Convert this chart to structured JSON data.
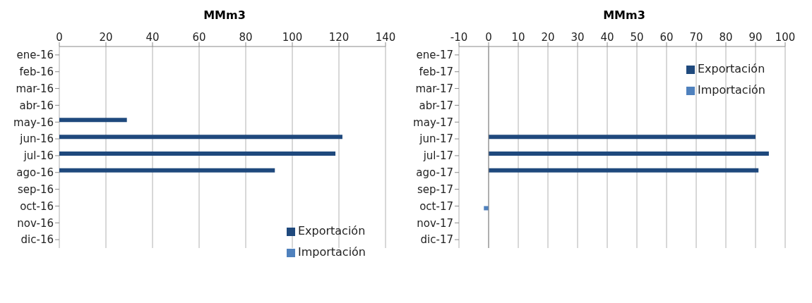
{
  "chart_data": [
    {
      "type": "bar",
      "orientation": "horizontal",
      "xlabel": "MMm3",
      "categories": [
        "ene-16",
        "feb-16",
        "mar-16",
        "abr-16",
        "may-16",
        "jun-16",
        "jul-16",
        "ago-16",
        "sep-16",
        "oct-16",
        "nov-16",
        "dic-16"
      ],
      "series": [
        {
          "name": "Exportación",
          "color": "#1f497d",
          "values": [
            null,
            null,
            null,
            null,
            29,
            121.5,
            118.5,
            92.5,
            null,
            null,
            null,
            null
          ]
        },
        {
          "name": "Importación",
          "color": "#4f81bd",
          "values": [
            null,
            null,
            null,
            null,
            null,
            null,
            null,
            null,
            null,
            null,
            null,
            null
          ]
        }
      ],
      "xlim": [
        0,
        140
      ],
      "xticks": [
        0,
        20,
        40,
        60,
        80,
        100,
        120,
        140
      ],
      "grid": "x",
      "legend": "bottom right"
    },
    {
      "type": "bar",
      "orientation": "horizontal",
      "xlabel": "MMm3",
      "categories": [
        "ene-17",
        "feb-17",
        "mar-17",
        "abr-17",
        "may-17",
        "jun-17",
        "jul-17",
        "ago-17",
        "sep-17",
        "oct-17",
        "nov-17",
        "dic-17"
      ],
      "series": [
        {
          "name": "Exportación",
          "color": "#1f497d",
          "values": [
            null,
            null,
            null,
            null,
            null,
            90,
            94.5,
            91,
            null,
            null,
            null,
            null
          ]
        },
        {
          "name": "Importación",
          "color": "#4f81bd",
          "values": [
            null,
            null,
            null,
            null,
            null,
            null,
            null,
            null,
            null,
            -1.6,
            null,
            null
          ]
        }
      ],
      "xlim": [
        -10,
        100
      ],
      "xticks": [
        -10,
        0,
        10,
        20,
        30,
        40,
        50,
        60,
        70,
        80,
        90,
        100
      ],
      "grid": "x",
      "legend": "top right"
    }
  ]
}
